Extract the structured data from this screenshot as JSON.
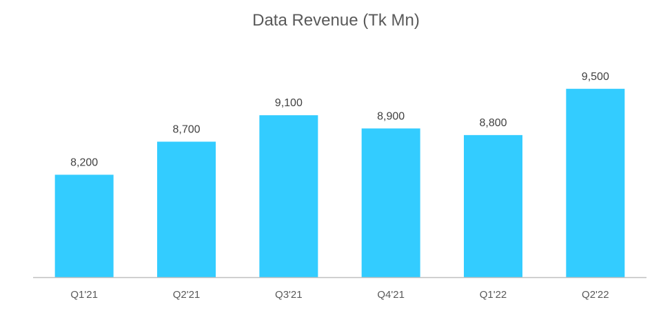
{
  "chart_data": {
    "type": "bar",
    "title": "Data Revenue (Tk Mn)",
    "categories": [
      "Q1'21",
      "Q2'21",
      "Q3'21",
      "Q4'21",
      "Q1'22",
      "Q2'22"
    ],
    "values": [
      8200,
      8700,
      9100,
      8900,
      8800,
      9500
    ],
    "value_labels": [
      "8,200",
      "8,700",
      "9,100",
      "8,900",
      "8,800",
      "9,500"
    ],
    "xlabel": "",
    "ylabel": "",
    "ylim": [
      6650,
      9800
    ],
    "grid": false,
    "legend": "none",
    "bar_color": "#33CCFF",
    "axis_color": "#BFBFBF"
  }
}
